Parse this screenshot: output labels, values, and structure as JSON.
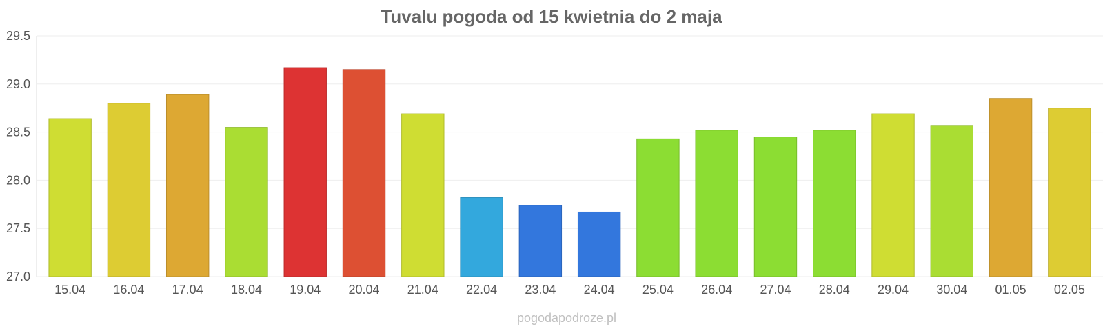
{
  "chart_data": {
    "type": "bar",
    "title": "Tuvalu pogoda od 15 kwietnia do 2 maja",
    "xlabel": "",
    "ylabel": "",
    "ylim": [
      27.0,
      29.5
    ],
    "yticks": [
      "27.0",
      "27.5",
      "28.0",
      "28.5",
      "29.0",
      "29.5"
    ],
    "ytick_values": [
      27.0,
      27.5,
      28.0,
      28.5,
      29.0,
      29.5
    ],
    "grid": true,
    "categories": [
      "15.04",
      "16.04",
      "17.04",
      "18.04",
      "19.04",
      "20.04",
      "21.04",
      "22.04",
      "23.04",
      "24.04",
      "25.04",
      "26.04",
      "27.04",
      "28.04",
      "29.04",
      "30.04",
      "01.05",
      "02.05"
    ],
    "values": [
      28.64,
      28.8,
      28.89,
      28.55,
      29.17,
      29.15,
      28.69,
      27.82,
      27.74,
      27.67,
      28.43,
      28.52,
      28.45,
      28.52,
      28.69,
      28.57,
      28.85,
      28.75
    ],
    "colors": [
      "#cfdd33",
      "#ddcc33",
      "#dda833",
      "#aadd33",
      "#dd3333",
      "#dd5033",
      "#cfdd33",
      "#33a8dd",
      "#3377dd",
      "#3377dd",
      "#8cdd33",
      "#8cdd33",
      "#8cdd33",
      "#8cdd33",
      "#cfdd33",
      "#aadd33",
      "#dda833",
      "#ddcc33"
    ]
  },
  "footer": "pogodapodroze.pl"
}
